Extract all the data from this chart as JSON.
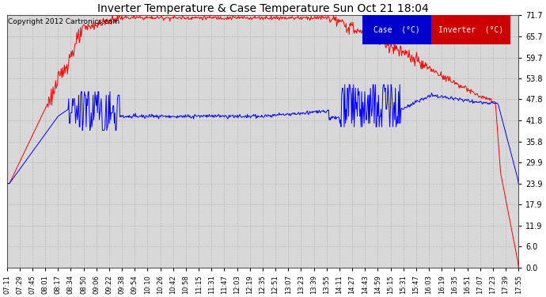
{
  "title": "Inverter Temperature & Case Temperature Sun Oct 21 18:04",
  "copyright": "Copyright 2012 Cartronics.com",
  "legend_case_label": "Case  (°C)",
  "legend_inverter_label": "Inverter  (°C)",
  "case_color": "#0000ff",
  "inverter_color": "#ff0000",
  "legend_case_bg": "#0000cc",
  "legend_inverter_bg": "#cc0000",
  "yticks": [
    0.0,
    6.0,
    11.9,
    17.9,
    23.9,
    29.9,
    35.8,
    41.8,
    47.8,
    53.8,
    59.7,
    65.7,
    71.7
  ],
  "ylim": [
    0.0,
    71.7
  ],
  "background_color": "#ffffff",
  "plot_bg_color": "#d8d8d8",
  "grid_color": "#bbbbbb",
  "xtick_labels": [
    "07:11",
    "07:29",
    "07:45",
    "08:01",
    "08:17",
    "08:34",
    "08:50",
    "09:06",
    "09:22",
    "09:38",
    "09:54",
    "10:10",
    "10:26",
    "10:42",
    "10:58",
    "11:15",
    "11:31",
    "11:47",
    "12:03",
    "12:19",
    "12:35",
    "12:51",
    "13:07",
    "13:23",
    "13:39",
    "13:55",
    "14:11",
    "14:27",
    "14:43",
    "14:59",
    "15:15",
    "15:31",
    "15:47",
    "16:03",
    "16:19",
    "16:35",
    "16:51",
    "17:07",
    "17:23",
    "17:39",
    "17:55"
  ],
  "n_points": 820
}
